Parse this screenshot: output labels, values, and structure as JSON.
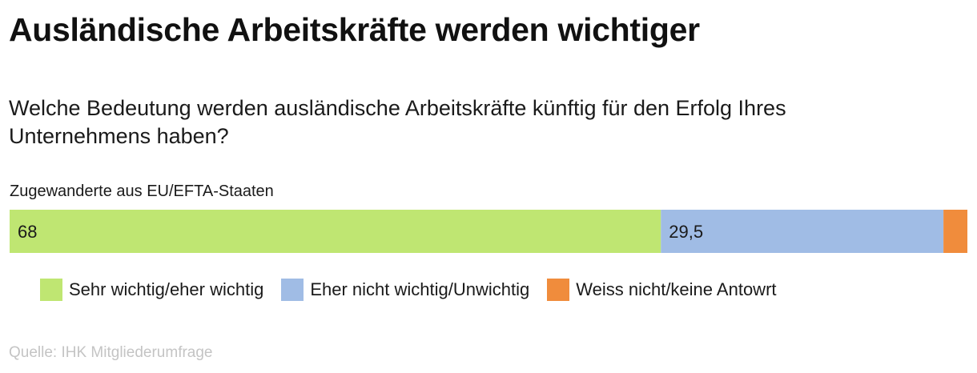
{
  "title": "Ausländische Arbeitskräfte werden wichtiger",
  "subtitle": "Welche Bedeutung werden ausländische Arbeitskräfte künftig für den Erfolg Ihres Unternehmens haben?",
  "source": "Quelle: IHK Mitgliederumfrage",
  "chart_data": {
    "type": "bar",
    "orientation": "horizontal",
    "stacked": true,
    "categories": [
      "Zugewanderte aus EU/EFTA-Staaten"
    ],
    "series": [
      {
        "name": "Sehr wichtig/eher wichtig",
        "values": [
          68
        ],
        "label": "68",
        "color": "#bfe672"
      },
      {
        "name": "Eher nicht wichtig/Unwichtig",
        "values": [
          29.5
        ],
        "label": "29,5",
        "color": "#a0bce5"
      },
      {
        "name": "Weiss nicht/keine Antowrt",
        "values": [
          2.5
        ],
        "label": "",
        "color": "#f08c3c"
      }
    ],
    "xlim": [
      0,
      100
    ],
    "grid": false,
    "legend_position": "bottom"
  }
}
